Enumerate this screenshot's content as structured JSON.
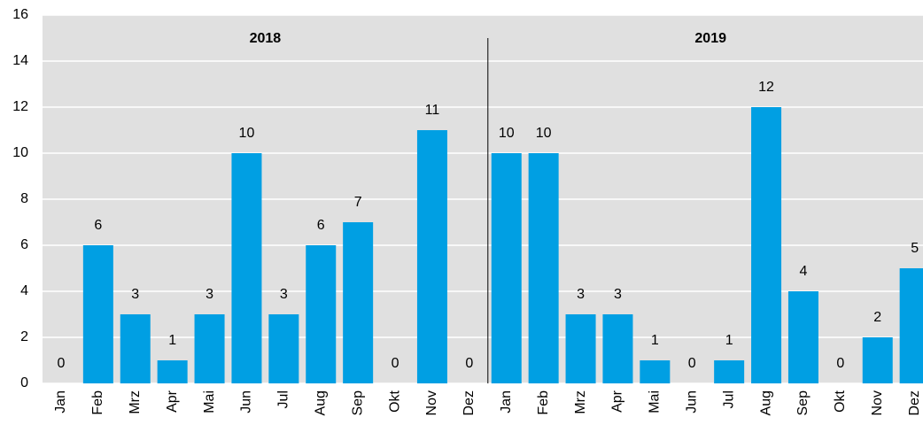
{
  "chart_data": {
    "type": "bar",
    "categories": [
      "Jan",
      "Feb",
      "Mrz",
      "Apr",
      "Mai",
      "Jun",
      "Jul",
      "Aug",
      "Sep",
      "Okt",
      "Nov",
      "Dez",
      "Jan",
      "Feb",
      "Mrz",
      "Apr",
      "Mai",
      "Jun",
      "Jul",
      "Aug",
      "Sep",
      "Okt",
      "Nov",
      "Dez"
    ],
    "values": [
      0,
      6,
      3,
      1,
      3,
      10,
      3,
      6,
      7,
      0,
      11,
      0,
      10,
      10,
      3,
      3,
      1,
      0,
      1,
      12,
      4,
      0,
      2,
      5
    ],
    "color": "#009fe3",
    "ylim": [
      0,
      16
    ],
    "yticks": [
      0,
      2,
      4,
      6,
      8,
      10,
      12,
      14,
      16
    ],
    "grid": true,
    "annotations": [
      "2018",
      "2019"
    ]
  }
}
